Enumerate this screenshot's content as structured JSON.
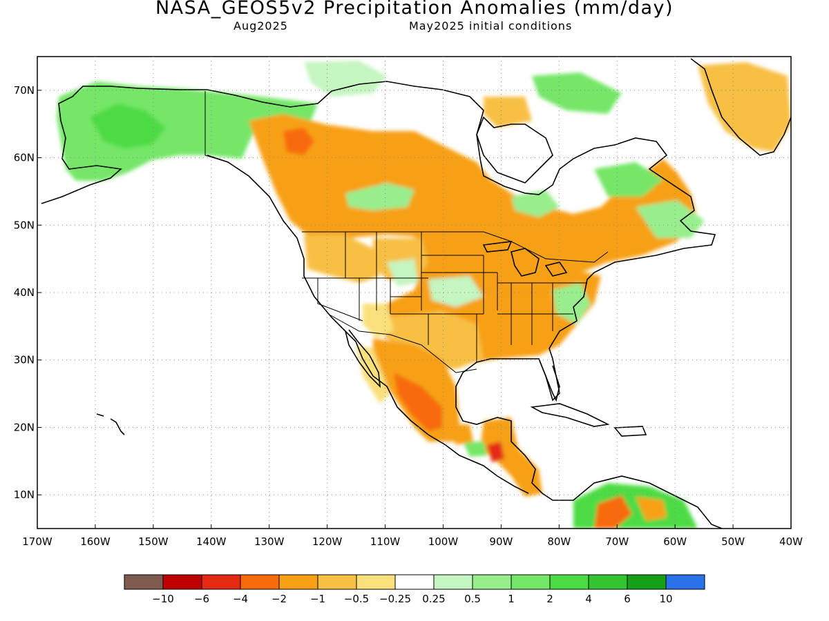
{
  "title": "NASA_GEOS5v2 Precipitation Anomalies (mm/day)",
  "subtitle_left": "Aug2025",
  "subtitle_right": "May2025 initial conditions",
  "map": {
    "lon_range": [
      -170,
      -40
    ],
    "lat_range": [
      5,
      75
    ],
    "lon_ticks": [
      "170W",
      "160W",
      "150W",
      "140W",
      "130W",
      "120W",
      "110W",
      "100W",
      "90W",
      "80W",
      "70W",
      "60W",
      "50W",
      "40W"
    ],
    "lat_ticks": [
      "10N",
      "20N",
      "30N",
      "40N",
      "50N",
      "60N",
      "70N"
    ],
    "gridlines": true
  },
  "colorbar": {
    "labels": [
      "-10",
      "-6",
      "-4",
      "-2",
      "-1",
      "-0.5",
      "-0.25",
      "0.25",
      "0.5",
      "1",
      "2",
      "4",
      "6",
      "10"
    ],
    "colors": [
      "#7f5a4e",
      "#c00000",
      "#e52a14",
      "#f86a0c",
      "#f7a013",
      "#f8bf45",
      "#fae07b",
      "#ffffff",
      "#c5f5c0",
      "#98ee8c",
      "#74e668",
      "#4ddb45",
      "#33c52f",
      "#16a017",
      "#2a72e8"
    ]
  },
  "colors": {
    "strong_dry": "#f86a0c",
    "dry": "#f7a013",
    "moderate_dry": "#f8bf45",
    "light_dry": "#fae07b",
    "light_wet": "#c5f5c0",
    "wet": "#98ee8c",
    "moderate_wet": "#74e668",
    "strong_wet": "#4ddb45",
    "very_wet": "#33c52f",
    "very_dry": "#e52a14",
    "extreme_dry": "#c00000"
  }
}
